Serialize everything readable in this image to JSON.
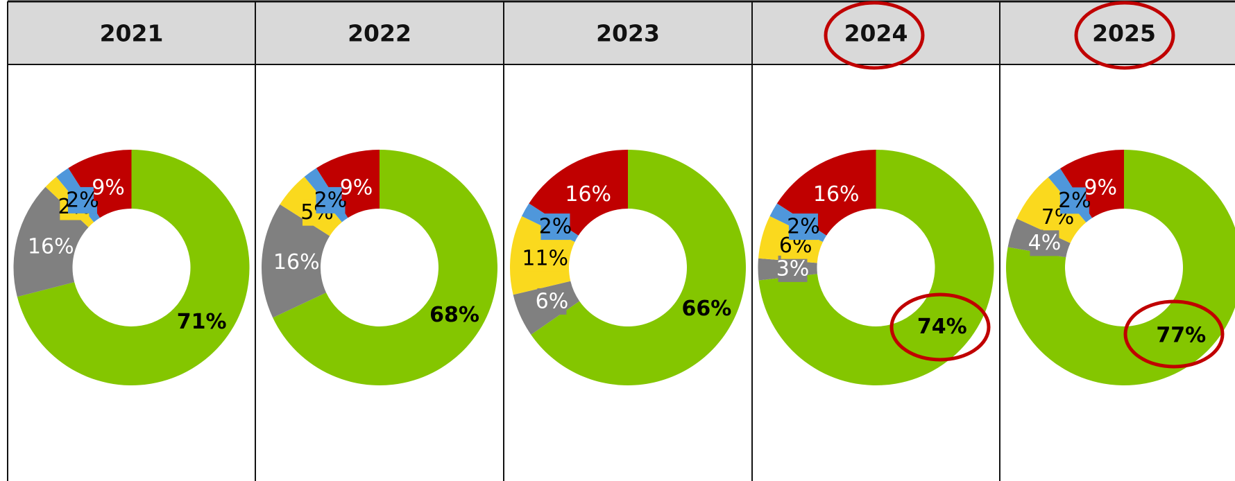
{
  "chart_data": [
    {
      "type": "donut",
      "title": "2021",
      "values": [
        71,
        16,
        2,
        2,
        9
      ],
      "value_labels": [
        "71%",
        "16%",
        "2%",
        "2%",
        "9%"
      ],
      "colors": [
        "#84c600",
        "#808080",
        "#fad91e",
        "#4f97db",
        "#c00000"
      ]
    },
    {
      "type": "donut",
      "title": "2022",
      "values": [
        68,
        16,
        5,
        2,
        9
      ],
      "value_labels": [
        "68%",
        "16%",
        "5%",
        "2%",
        "9%"
      ],
      "colors": [
        "#84c600",
        "#808080",
        "#fad91e",
        "#4f97db",
        "#c00000"
      ]
    },
    {
      "type": "donut",
      "title": "2023",
      "values": [
        66,
        6,
        11,
        2,
        16
      ],
      "value_labels": [
        "66%",
        "6%",
        "11%",
        "2%",
        "16%"
      ],
      "colors": [
        "#84c600",
        "#808080",
        "#fad91e",
        "#4f97db",
        "#c00000"
      ]
    },
    {
      "type": "donut",
      "title": "2024",
      "values": [
        74,
        3,
        6,
        2,
        16
      ],
      "value_labels": [
        "74%",
        "3%",
        "6%",
        "2%",
        "16%"
      ],
      "colors": [
        "#84c600",
        "#808080",
        "#fad91e",
        "#4f97db",
        "#c00000"
      ]
    },
    {
      "type": "donut",
      "title": "2025",
      "values": [
        77,
        4,
        7,
        2,
        9
      ],
      "value_labels": [
        "77%",
        "4%",
        "7%",
        "2%",
        "9%"
      ],
      "colors": [
        "#84c600",
        "#808080",
        "#fad91e",
        "#4f97db",
        "#c00000"
      ]
    }
  ]
}
